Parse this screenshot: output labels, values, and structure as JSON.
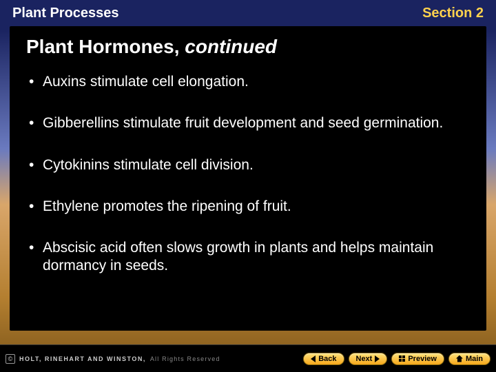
{
  "header": {
    "left": "Plant Processes",
    "right": "Section 2"
  },
  "title": {
    "main": "Plant Hormones, ",
    "italic": "continued"
  },
  "bullets": [
    "Auxins stimulate cell elongation.",
    "Gibberellins stimulate fruit development and seed germination.",
    "Cytokinins stimulate cell division.",
    "Ethylene promotes the ripening of fruit.",
    "Abscisic acid often slows growth in plants and helps maintain dormancy in seeds."
  ],
  "footer": {
    "copyright_symbol": "©",
    "publisher": "HOLT, RINEHART AND WINSTON,",
    "rights": "All Rights Reserved",
    "buttons": {
      "back": "Back",
      "next": "Next",
      "preview": "Preview",
      "main": "Main"
    }
  },
  "colors": {
    "accent": "#ffd24d",
    "panel_bg": "#000000",
    "text": "#ffffff"
  }
}
